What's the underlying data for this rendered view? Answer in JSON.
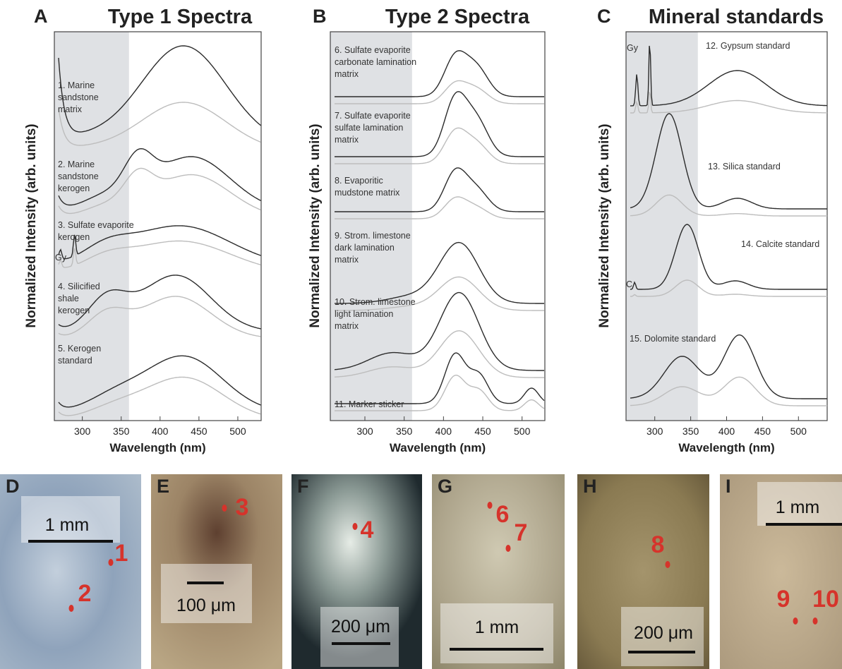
{
  "panels": [
    {
      "letter": "A",
      "title": "Type 1 Spectra",
      "x_label": "Wavelength (nm)",
      "y_label": "Normalized Intensity (arb. units)",
      "xlim": [
        264,
        530
      ],
      "xticks": [
        300,
        350,
        400,
        450,
        500
      ],
      "shaded_to": 360,
      "spectra": [
        {
          "lines": [
            "1. Marine",
            "sandstone",
            "matrix"
          ]
        },
        {
          "lines": [
            "2. Marine",
            "sandstone",
            "kerogen"
          ]
        },
        {
          "lines": [
            "3. Sulfate evaporite",
            "kerogen"
          ]
        },
        {
          "lines": [
            "4. Silicified",
            "shale",
            "kerogen"
          ]
        },
        {
          "lines": [
            "5. Kerogen",
            "standard"
          ]
        }
      ],
      "annotations": [
        "Gy"
      ]
    },
    {
      "letter": "B",
      "title": "Type 2 Spectra",
      "x_label": "Wavelength (nm)",
      "y_label": "Normalized Intensity (arb. units)",
      "xlim": [
        256,
        529
      ],
      "xticks": [
        300,
        350,
        400,
        450,
        500
      ],
      "shaded_to": 360,
      "spectra": [
        {
          "lines": [
            "6. Sulfate evaporite",
            "carbonate lamination",
            "matrix"
          ]
        },
        {
          "lines": [
            "7. Sulfate evaporite",
            "sulfate lamination",
            "matrix"
          ]
        },
        {
          "lines": [
            "8. Evaporitic",
            "mudstone matrix"
          ]
        },
        {
          "lines": [
            "9. Strom. limestone",
            "dark lamination",
            "matrix"
          ]
        },
        {
          "lines": [
            "10. Strom. limestone",
            "light lamination",
            "matrix"
          ]
        },
        {
          "lines": [
            "11. Marker sticker"
          ]
        }
      ],
      "annotations": []
    },
    {
      "letter": "C",
      "title": "Mineral standards",
      "x_label": "Wavelength (nm)",
      "y_label": "Normalized Intensity (arb. units)",
      "xlim": [
        260,
        540
      ],
      "xticks": [
        300,
        350,
        400,
        450,
        500
      ],
      "shaded_to": 360,
      "spectra": [
        {
          "lines": [
            "12. Gypsum standard"
          ]
        },
        {
          "lines": [
            "13. Silica standard"
          ]
        },
        {
          "lines": [
            "14. Calcite standard"
          ]
        },
        {
          "lines": [
            "15. Dolomite standard"
          ]
        }
      ],
      "annotations": [
        "Gy",
        "C"
      ]
    }
  ],
  "photos": [
    {
      "letter": "D",
      "scale": "1 mm",
      "points": [
        "1",
        "2"
      ]
    },
    {
      "letter": "E",
      "scale": "100 μm",
      "points": [
        "3"
      ]
    },
    {
      "letter": "F",
      "scale": "200 μm",
      "points": [
        "4"
      ]
    },
    {
      "letter": "G",
      "scale": "1 mm",
      "points": [
        "6",
        "7"
      ]
    },
    {
      "letter": "H",
      "scale": "200 μm",
      "points": [
        "8"
      ]
    },
    {
      "letter": "I",
      "scale": "1 mm",
      "points": [
        "9",
        "10"
      ]
    }
  ]
}
